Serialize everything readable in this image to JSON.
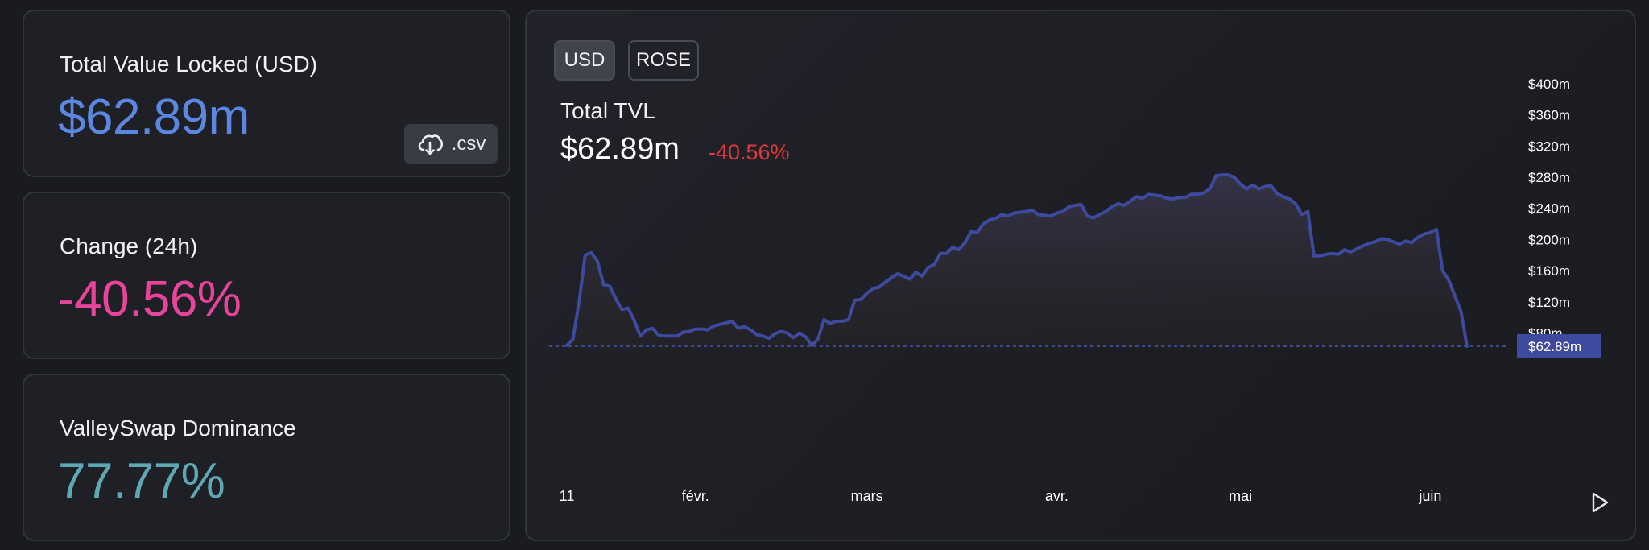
{
  "stats": {
    "tvl": {
      "label": "Total Value Locked (USD)",
      "value": "$62.89m",
      "color": "#5b87e0"
    },
    "csv_label": ".csv",
    "change": {
      "label": "Change (24h)",
      "value": "-40.56%",
      "color": "#e8449a"
    },
    "dominance": {
      "label": "ValleySwap Dominance",
      "value": "77.77%",
      "color": "#5ea8b4"
    }
  },
  "chart_header": {
    "toggles": [
      "USD",
      "ROSE"
    ],
    "active_toggle": "USD",
    "title": "Total TVL",
    "total": "$62.89m",
    "change": "-40.56%"
  },
  "chart_data": {
    "type": "area",
    "line_color": "#3d4a9e",
    "y_ticks": [
      "$400m",
      "$360m",
      "$320m",
      "$280m",
      "$240m",
      "$200m",
      "$160m",
      "$120m",
      "$80m"
    ],
    "y_tick_values": [
      400,
      360,
      320,
      280,
      240,
      200,
      160,
      120,
      80
    ],
    "ylim": [
      62.89,
      400
    ],
    "x_ticks": [
      {
        "label": "11",
        "day": 0
      },
      {
        "label": "févr.",
        "day": 21
      },
      {
        "label": "mars",
        "day": 49
      },
      {
        "label": "avr.",
        "day": 80
      },
      {
        "label": "mai",
        "day": 110
      },
      {
        "label": "juin",
        "day": 141
      }
    ],
    "current_label": "$62.89m",
    "current_value": 62.89,
    "points": [
      [
        0,
        64
      ],
      [
        1,
        72
      ],
      [
        2,
        120
      ],
      [
        3,
        180
      ],
      [
        4,
        183
      ],
      [
        5,
        172
      ],
      [
        6,
        142
      ],
      [
        7,
        140
      ],
      [
        8,
        124
      ],
      [
        9,
        110
      ],
      [
        10,
        112
      ],
      [
        11,
        96
      ],
      [
        12,
        76
      ],
      [
        13,
        84
      ],
      [
        14,
        86
      ],
      [
        15,
        77
      ],
      [
        16,
        76
      ],
      [
        17,
        76
      ],
      [
        18,
        76
      ],
      [
        19,
        81
      ],
      [
        20,
        82
      ],
      [
        21,
        85
      ],
      [
        22,
        85
      ],
      [
        23,
        84
      ],
      [
        24,
        89
      ],
      [
        25,
        91
      ],
      [
        26,
        93
      ],
      [
        27,
        95
      ],
      [
        28,
        86
      ],
      [
        29,
        88
      ],
      [
        30,
        84
      ],
      [
        31,
        78
      ],
      [
        32,
        76
      ],
      [
        33,
        73
      ],
      [
        34,
        79
      ],
      [
        35,
        82
      ],
      [
        36,
        80
      ],
      [
        37,
        74
      ],
      [
        38,
        80
      ],
      [
        39,
        75
      ],
      [
        40,
        64
      ],
      [
        41,
        72
      ],
      [
        42,
        97
      ],
      [
        43,
        92
      ],
      [
        44,
        95
      ],
      [
        45,
        95
      ],
      [
        46,
        97
      ],
      [
        47,
        122
      ],
      [
        48,
        123
      ],
      [
        49,
        131
      ],
      [
        50,
        137
      ],
      [
        51,
        139
      ],
      [
        52,
        145
      ],
      [
        53,
        151
      ],
      [
        54,
        156
      ],
      [
        55,
        153
      ],
      [
        56,
        149
      ],
      [
        57,
        158
      ],
      [
        58,
        153
      ],
      [
        59,
        164
      ],
      [
        60,
        168
      ],
      [
        61,
        182
      ],
      [
        62,
        182
      ],
      [
        63,
        190
      ],
      [
        64,
        187
      ],
      [
        65,
        196
      ],
      [
        66,
        210
      ],
      [
        67,
        209
      ],
      [
        68,
        220
      ],
      [
        69,
        225
      ],
      [
        70,
        227
      ],
      [
        71,
        232
      ],
      [
        72,
        230
      ],
      [
        73,
        234
      ],
      [
        74,
        235
      ],
      [
        75,
        236
      ],
      [
        76,
        238
      ],
      [
        77,
        232
      ],
      [
        78,
        231
      ],
      [
        79,
        230
      ],
      [
        80,
        234
      ],
      [
        81,
        236
      ],
      [
        82,
        242
      ],
      [
        83,
        244
      ],
      [
        84,
        245
      ],
      [
        85,
        230
      ],
      [
        86,
        228
      ],
      [
        87,
        232
      ],
      [
        88,
        236
      ],
      [
        89,
        242
      ],
      [
        90,
        246
      ],
      [
        91,
        244
      ],
      [
        92,
        249
      ],
      [
        93,
        255
      ],
      [
        94,
        253
      ],
      [
        95,
        258
      ],
      [
        96,
        257
      ],
      [
        97,
        256
      ],
      [
        98,
        253
      ],
      [
        99,
        252
      ],
      [
        100,
        254
      ],
      [
        101,
        254
      ],
      [
        102,
        258
      ],
      [
        103,
        258
      ],
      [
        104,
        260
      ],
      [
        105,
        265
      ],
      [
        106,
        282
      ],
      [
        107,
        283
      ],
      [
        108,
        283
      ],
      [
        109,
        280
      ],
      [
        110,
        271
      ],
      [
        111,
        265
      ],
      [
        112,
        270
      ],
      [
        113,
        265
      ],
      [
        114,
        268
      ],
      [
        115,
        269
      ],
      [
        116,
        259
      ],
      [
        117,
        255
      ],
      [
        118,
        252
      ],
      [
        119,
        246
      ],
      [
        120,
        232
      ],
      [
        121,
        236
      ],
      [
        122,
        179
      ],
      [
        123,
        179
      ],
      [
        124,
        181
      ],
      [
        125,
        182
      ],
      [
        126,
        181
      ],
      [
        127,
        187
      ],
      [
        128,
        184
      ],
      [
        129,
        188
      ],
      [
        130,
        192
      ],
      [
        131,
        195
      ],
      [
        132,
        197
      ],
      [
        133,
        201
      ],
      [
        134,
        200
      ],
      [
        135,
        197
      ],
      [
        136,
        194
      ],
      [
        137,
        198
      ],
      [
        138,
        196
      ],
      [
        139,
        203
      ],
      [
        140,
        207
      ],
      [
        141,
        209
      ],
      [
        142,
        213
      ],
      [
        143,
        160
      ],
      [
        144,
        148
      ],
      [
        145,
        128
      ],
      [
        146,
        108
      ],
      [
        147,
        62.89
      ]
    ]
  }
}
